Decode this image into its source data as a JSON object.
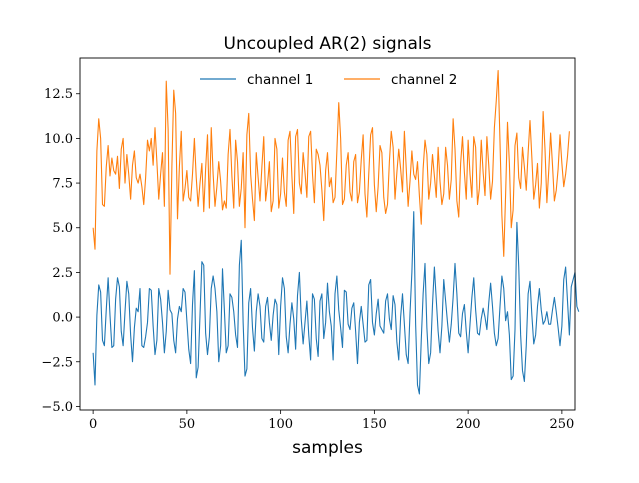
{
  "chart_data": {
    "type": "line",
    "title": "Uncoupled AR(2) signals",
    "xlabel": "samples",
    "ylabel": "",
    "xlim": [
      -7,
      257
    ],
    "ylim": [
      -5.2,
      14.5
    ],
    "x_ticks": [
      0,
      50,
      100,
      150,
      200,
      250
    ],
    "x_tick_labels": [
      "0",
      "50",
      "100",
      "150",
      "200",
      "250"
    ],
    "y_ticks": [
      -5.0,
      -2.5,
      0.0,
      2.5,
      5.0,
      7.5,
      10.0,
      12.5
    ],
    "y_tick_labels": [
      "−5.0",
      "−2.5",
      "0.0",
      "2.5",
      "5.0",
      "7.5",
      "10.0",
      "12.5"
    ],
    "grid": false,
    "legend": {
      "placement": "upper-center",
      "columns": 2,
      "frame": false
    },
    "series": [
      {
        "name": "channel 1",
        "color": "#1f77b4",
        "values": [
          -2.0,
          -3.8,
          0.1,
          1.8,
          1.4,
          -1.3,
          -1.6,
          0.4,
          2.2,
          0.1,
          -1.7,
          -1.6,
          1.0,
          2.2,
          1.7,
          -0.8,
          -1.6,
          0.3,
          2.0,
          1.3,
          -1.0,
          -2.5,
          -0.6,
          0.5,
          0.3,
          1.6,
          -1.6,
          -1.7,
          -1.1,
          -0.3,
          1.6,
          1.5,
          -0.5,
          -2.1,
          -1.3,
          1.6,
          1.0,
          -0.3,
          -2.0,
          -0.8,
          1.5,
          0.4,
          0.2,
          -1.3,
          -2.0,
          -0.1,
          0.6,
          0.3,
          1.6,
          1.4,
          -0.2,
          -1.8,
          -2.6,
          0.7,
          2.6,
          -3.4,
          -2.8,
          0.1,
          3.1,
          2.9,
          -0.9,
          -2.1,
          -1.1,
          1.6,
          2.3,
          1.6,
          0.3,
          -2.5,
          -1.6,
          2.7,
          0.4,
          -2.0,
          -1.6,
          1.3,
          1.1,
          0.3,
          -1.0,
          -1.7,
          2.9,
          4.3,
          -0.3,
          -3.3,
          -2.9,
          0.8,
          1.6,
          -0.6,
          -1.9,
          0.3,
          1.3,
          0.6,
          -1.2,
          -1.4,
          0.6,
          1.1,
          -0.3,
          -1.3,
          0.1,
          1.0,
          0.7,
          -2.1,
          0.6,
          2.2,
          1.6,
          -1.1,
          -2.0,
          -0.4,
          0.8,
          -0.1,
          -1.8,
          1.2,
          2.5,
          -0.1,
          -1.5,
          -0.3,
          0.9,
          -1.0,
          -2.4,
          1.3,
          1.0,
          -1.2,
          -2.2,
          0.9,
          1.3,
          -1.2,
          -0.3,
          1.9,
          0.3,
          -0.5,
          -2.4,
          1.3,
          2.3,
          0.4,
          -0.6,
          -1.7,
          1.5,
          1.4,
          -0.4,
          -0.7,
          0.5,
          0.8,
          -0.8,
          -2.6,
          -0.3,
          0.6,
          -0.4,
          -1.4,
          -1.3,
          1.8,
          2.1,
          -0.3,
          -1.0,
          0.2,
          1.0,
          -0.5,
          -0.7,
          -0.9,
          0.9,
          1.3,
          -0.1,
          -0.7,
          1.2,
          0.7,
          -1.4,
          -2.4,
          0.0,
          1.3,
          -0.4,
          -2.1,
          -2.6,
          0.2,
          2.5,
          5.9,
          -0.4,
          -3.8,
          -4.3,
          -1.3,
          1.3,
          3.0,
          -0.6,
          -2.6,
          -2.0,
          0.7,
          2.8,
          1.0,
          -0.8,
          -2.0,
          -0.5,
          2.1,
          0.9,
          -0.3,
          -1.4,
          -0.4,
          1.1,
          3.0,
          1.3,
          -0.9,
          -1.1,
          0.2,
          0.7,
          -0.8,
          -2.0,
          -0.4,
          1.1,
          2.2,
          0.4,
          -0.9,
          -1.0,
          -0.1,
          0.5,
          0.0,
          -0.7,
          0.8,
          1.9,
          0.6,
          -0.9,
          -1.6,
          -1.2,
          0.6,
          2.3,
          1.6,
          -0.2,
          0.3,
          -1.0,
          -3.5,
          -3.3,
          -0.7,
          5.3,
          2.8,
          -1.0,
          -3.0,
          -3.6,
          -1.6,
          1.3,
          2.0,
          0.1,
          -1.5,
          -1.0,
          0.6,
          1.6,
          0.4,
          -0.4,
          -0.2,
          0.3,
          -0.4,
          -0.4,
          0.4,
          1.1,
          0.3,
          -0.6,
          -1.6,
          -0.5,
          2.1,
          2.8,
          0.9,
          -1.0,
          1.7,
          2.1,
          2.5,
          0.6,
          0.3
        ]
      },
      {
        "name": "channel 2",
        "color": "#ff7f0e",
        "values": [
          5.0,
          3.8,
          9.3,
          11.1,
          10.0,
          6.3,
          6.2,
          8.4,
          9.6,
          7.9,
          8.9,
          8.2,
          8.0,
          9.0,
          7.2,
          9.4,
          10.0,
          7.5,
          9.1,
          8.0,
          6.6,
          8.5,
          9.3,
          7.8,
          7.5,
          8.0,
          7.3,
          6.3,
          7.8,
          9.9,
          9.3,
          10.0,
          8.5,
          10.6,
          8.7,
          6.6,
          8.0,
          9.2,
          6.2,
          13.2,
          10.5,
          2.4,
          8.4,
          12.7,
          11.4,
          5.5,
          8.4,
          10.4,
          6.5,
          7.2,
          8.2,
          6.7,
          6.5,
          8.0,
          10.0,
          7.8,
          6.2,
          7.5,
          8.6,
          5.9,
          8.3,
          10.2,
          6.1,
          10.6,
          8.0,
          6.2,
          7.3,
          8.7,
          7.6,
          6.0,
          6.5,
          6.1,
          9.1,
          10.5,
          7.9,
          6.1,
          9.9,
          8.7,
          6.2,
          7.2,
          9.2,
          5.0,
          10.2,
          11.4,
          8.0,
          6.6,
          5.4,
          9.2,
          7.8,
          6.5,
          8.4,
          10.1,
          6.5,
          7.4,
          8.7,
          5.9,
          6.5,
          10.0,
          9.4,
          6.1,
          6.9,
          8.9,
          7.0,
          6.2,
          9.9,
          10.4,
          7.9,
          5.8,
          10.1,
          10.5,
          7.5,
          6.9,
          9.2,
          8.1,
          6.7,
          10.1,
          10.4,
          8.0,
          6.4,
          9.4,
          9.1,
          8.5,
          7.1,
          5.4,
          8.2,
          9.2,
          7.3,
          7.8,
          6.4,
          6.7,
          9.3,
          12.0,
          10.0,
          6.3,
          6.6,
          8.5,
          9.2,
          7.0,
          6.5,
          8.7,
          9.1,
          6.4,
          7.0,
          8.8,
          10.2,
          6.9,
          5.6,
          8.0,
          10.2,
          10.6,
          7.4,
          5.9,
          7.3,
          9.6,
          9.2,
          6.7,
          5.8,
          6.3,
          8.7,
          10.4,
          9.5,
          6.6,
          8.1,
          9.4,
          8.3,
          7.0,
          10.4,
          8.3,
          6.2,
          7.6,
          9.3,
          8.0,
          7.7,
          8.7,
          6.8,
          5.2,
          8.3,
          9.9,
          9.1,
          6.6,
          7.5,
          9.1,
          7.9,
          6.7,
          9.5,
          7.6,
          6.3,
          6.9,
          9.5,
          8.5,
          6.6,
          7.7,
          11.1,
          9.4,
          6.5,
          5.6,
          8.6,
          10.1,
          8.1,
          6.6,
          9.9,
          8.0,
          6.7,
          10.1,
          9.5,
          6.3,
          7.2,
          9.9,
          8.1,
          6.8,
          10.1,
          8.5,
          6.6,
          7.6,
          10.6,
          12.1,
          13.8,
          9.8,
          5.7,
          3.4,
          6.9,
          10.9,
          8.6,
          5.0,
          6.0,
          9.6,
          10.3,
          7.8,
          7.2,
          9.5,
          8.4,
          7.1,
          9.2,
          11.0,
          8.9,
          6.6,
          7.4,
          8.6,
          6.1,
          7.5,
          11.5,
          9.4,
          6.4,
          8.2,
          10.3,
          8.5,
          6.5,
          7.1,
          8.3,
          10.2,
          8.6,
          7.3,
          8.0,
          9.0,
          10.4
        ]
      }
    ]
  }
}
